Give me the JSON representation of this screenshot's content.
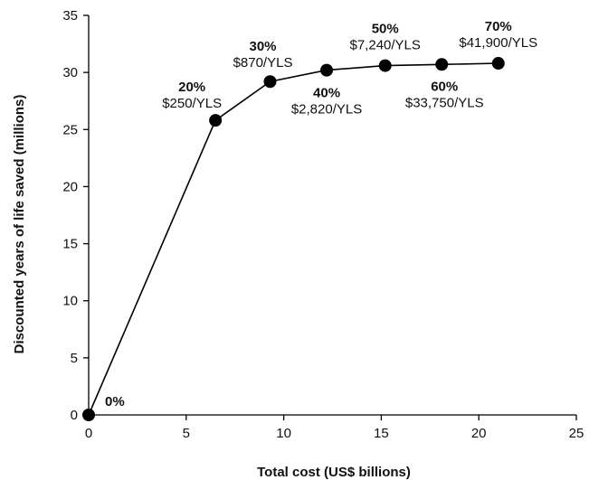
{
  "chart_data": {
    "type": "line",
    "title": "",
    "xlabel": "Total cost (US$ billions)",
    "ylabel": "Discounted years of life saved (millions)",
    "xlim": [
      0,
      25
    ],
    "ylim": [
      0,
      35
    ],
    "xticks": [
      0,
      5,
      10,
      15,
      20,
      25
    ],
    "yticks": [
      0,
      5,
      10,
      15,
      20,
      25,
      30,
      35
    ],
    "grid": false,
    "legend": "none",
    "line_color": "#000000",
    "marker_color": "#000000",
    "series": [
      {
        "points": [
          {
            "x": 0.0,
            "y": 0.0,
            "label": "0%",
            "cost": ""
          },
          {
            "x": 6.5,
            "y": 25.8,
            "label": "20%",
            "cost": "$250/YLS"
          },
          {
            "x": 9.3,
            "y": 29.2,
            "label": "30%",
            "cost": "$870/YLS"
          },
          {
            "x": 12.2,
            "y": 30.2,
            "label": "40%",
            "cost": "$2,820/YLS"
          },
          {
            "x": 15.2,
            "y": 30.6,
            "label": "50%",
            "cost": "$7,240/YLS"
          },
          {
            "x": 18.1,
            "y": 30.7,
            "label": "60%",
            "cost": "$33,750/YLS"
          },
          {
            "x": 21.0,
            "y": 30.8,
            "label": "70%",
            "cost": "$41,900/YLS"
          }
        ]
      }
    ]
  }
}
